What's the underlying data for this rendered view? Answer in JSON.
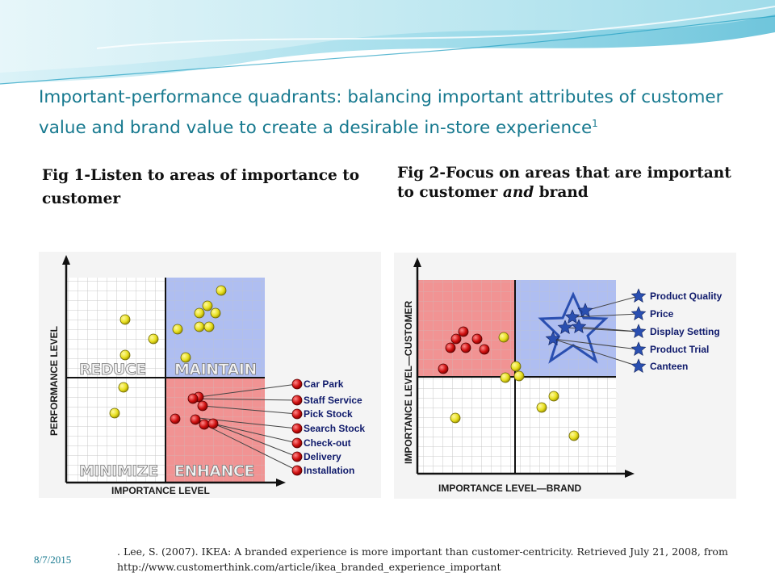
{
  "slide": {
    "title": "Important-performance quadrants: balancing important attributes of customer value and brand value to create a desirable in-store experience",
    "title_superscript": "1",
    "date": "8/7/2015",
    "reference": ". Lee, S. (2007). IKEA: A branded experience is more important than customer-centricity. Retrieved July 21, 2008, from http://www.customerthink.com/article/ikea_branded_experience_important"
  },
  "fig1": {
    "caption": "Fig 1-Listen to areas of importance to customer",
    "y_axis_label": "PERFORMANCE LEVEL",
    "x_axis_label": "IMPORTANCE LEVEL",
    "quadrants": {
      "top_left": "REDUCE",
      "top_right": "MAINTAIN",
      "bottom_left": "MINIMIZE",
      "bottom_right": "ENHANCE"
    },
    "quadrant_colors": {
      "top_right": "#a8b8f0",
      "bottom_right": "#f08a8a"
    },
    "labeled_points": [
      "Car Park",
      "Staff Service",
      "Pick Stock",
      "Search Stock",
      "Check-out",
      "Delivery",
      "Installation"
    ]
  },
  "fig2": {
    "caption_part1": "Fig 2-Focus on areas that are important to customer ",
    "caption_emphasis": "and",
    "caption_part2": " brand",
    "y_axis_label": "IMPORTANCE LEVEL—CUSTOMER",
    "x_axis_label": "IMPORTANCE LEVEL—BRAND",
    "quadrant_colors": {
      "top_left": "#f08a8a",
      "top_right": "#a8b8f0"
    },
    "labeled_points": [
      "Product Quality",
      "Price",
      "Display Setting",
      "Product Trial",
      "Canteen"
    ]
  },
  "colors": {
    "title": "#17798f",
    "yellow_point": "#e8e020",
    "red_point": "#d01010",
    "star_point": "#2a4fb0"
  }
}
